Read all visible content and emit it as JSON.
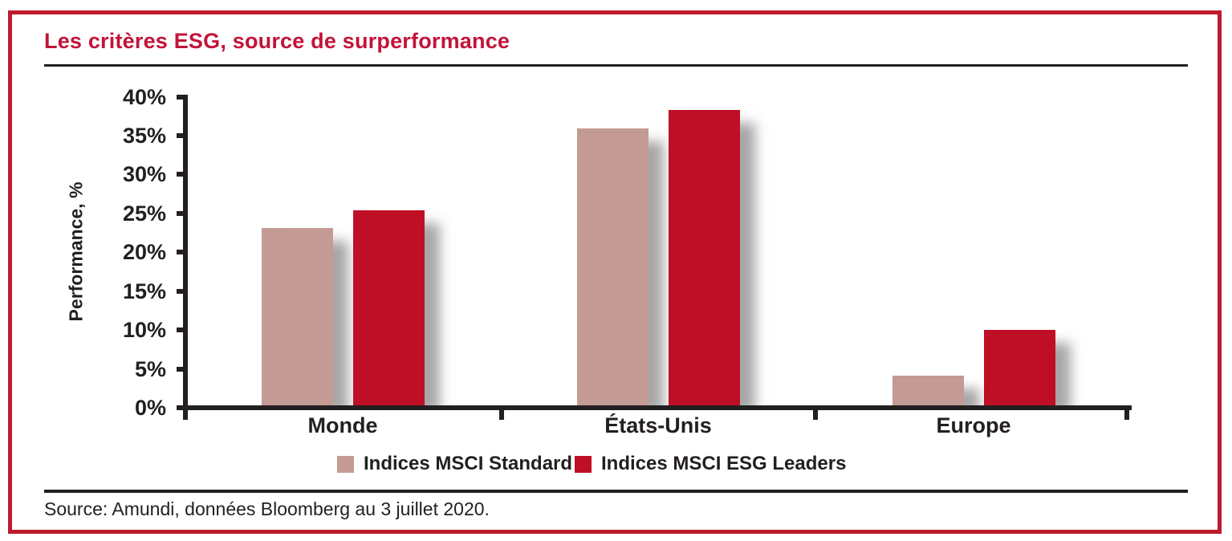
{
  "colors": {
    "frame": "#BE1B2E",
    "title": "#C31338",
    "axis": "#231F20",
    "text": "#231F20"
  },
  "header": {
    "title": "Les critères ESG, source de surperformance"
  },
  "chart_data": {
    "type": "bar",
    "title": "Les critères ESG, source de surperformance",
    "categories": [
      "Monde",
      "États-Unis",
      "Europe"
    ],
    "series": [
      {
        "name": "Indices MSCI Standard",
        "color": "#C49A94",
        "values": [
          23.0,
          35.8,
          3.8
        ]
      },
      {
        "name": "Indices MSCI ESG Leaders",
        "color": "#BE0F26",
        "values": [
          25.3,
          38.2,
          9.8
        ]
      }
    ],
    "xlabel": "",
    "ylabel": "Performance, %",
    "ylim": [
      0,
      40
    ],
    "ytick_step": 5,
    "ytick_labels": [
      "0%",
      "5%",
      "10%",
      "15%",
      "20%",
      "25%",
      "30%",
      "35%",
      "40%"
    ],
    "grid": false,
    "legend_position": "bottom"
  },
  "footer": {
    "source": "Source: Amundi, données Bloomberg au 3 juillet 2020."
  }
}
